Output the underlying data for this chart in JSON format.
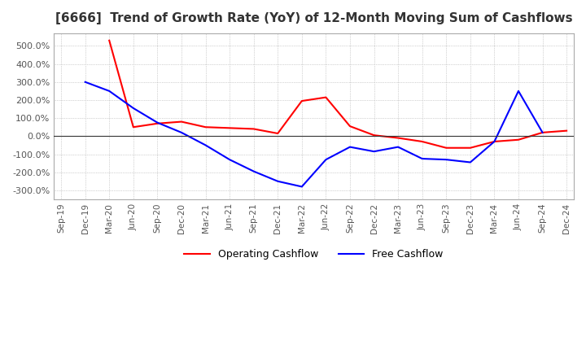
{
  "title": "[6666]  Trend of Growth Rate (YoY) of 12-Month Moving Sum of Cashflows",
  "title_color": "#333333",
  "background_color": "#ffffff",
  "grid_color": "#aaaaaa",
  "ylim": [
    -350,
    570
  ],
  "yticks": [
    -300,
    -200,
    -100,
    0,
    100,
    200,
    300,
    400,
    500
  ],
  "legend_labels": [
    "Operating Cashflow",
    "Free Cashflow"
  ],
  "line_colors": [
    "#ff0000",
    "#0000ff"
  ],
  "x_labels": [
    "Sep-19",
    "Dec-19",
    "Mar-20",
    "Jun-20",
    "Sep-20",
    "Dec-20",
    "Mar-21",
    "Jun-21",
    "Sep-21",
    "Dec-21",
    "Mar-22",
    "Jun-22",
    "Sep-22",
    "Dec-22",
    "Mar-23",
    "Jun-23",
    "Sep-23",
    "Dec-23",
    "Mar-24",
    "Jun-24",
    "Sep-24",
    "Dec-24"
  ],
  "operating_cashflow": [
    null,
    null,
    530,
    50,
    70,
    80,
    50,
    45,
    40,
    15,
    195,
    215,
    55,
    5,
    -10,
    -30,
    -65,
    -65,
    -30,
    -20,
    20,
    30
  ],
  "free_cashflow": [
    null,
    300,
    250,
    155,
    75,
    20,
    -50,
    -130,
    -195,
    -250,
    -280,
    -130,
    -60,
    -85,
    -60,
    -125,
    -130,
    -145,
    -30,
    250,
    20,
    null
  ]
}
